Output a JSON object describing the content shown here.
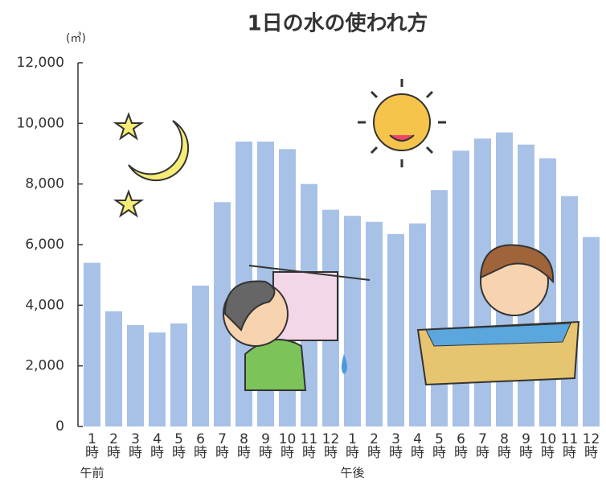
{
  "chart_data": {
    "type": "bar",
    "title": "1日の水の使われ方",
    "y_unit": "(㎥)",
    "categories": [
      "1時",
      "2時",
      "3時",
      "4時",
      "5時",
      "6時",
      "7時",
      "8時",
      "9時",
      "10時",
      "11時",
      "12時",
      "1時",
      "2時",
      "3時",
      "4時",
      "5時",
      "6時",
      "7時",
      "8時",
      "9時",
      "10時",
      "11時",
      "12時"
    ],
    "category_groups": [
      "午前",
      "午後"
    ],
    "values": [
      5400,
      3800,
      3350,
      3100,
      3400,
      4650,
      7400,
      9400,
      9400,
      9150,
      8000,
      7150,
      6950,
      6750,
      6350,
      6700,
      7800,
      9100,
      9500,
      9700,
      9300,
      8850,
      7600,
      6250
    ],
    "color": "#a8c1e6",
    "ylim": [
      0,
      12000
    ],
    "yticks": [
      0,
      {
        "value": 2000,
        "label": "2,000"
      },
      {
        "value": 4000,
        "label": "4,000"
      },
      {
        "value": 6000,
        "label": "6,000"
      },
      {
        "value": 8000,
        "label": "8,000"
      },
      {
        "value": 10000,
        "label": "10,000"
      },
      {
        "value": 12000,
        "label": "12,000"
      }
    ],
    "grid": false
  }
}
